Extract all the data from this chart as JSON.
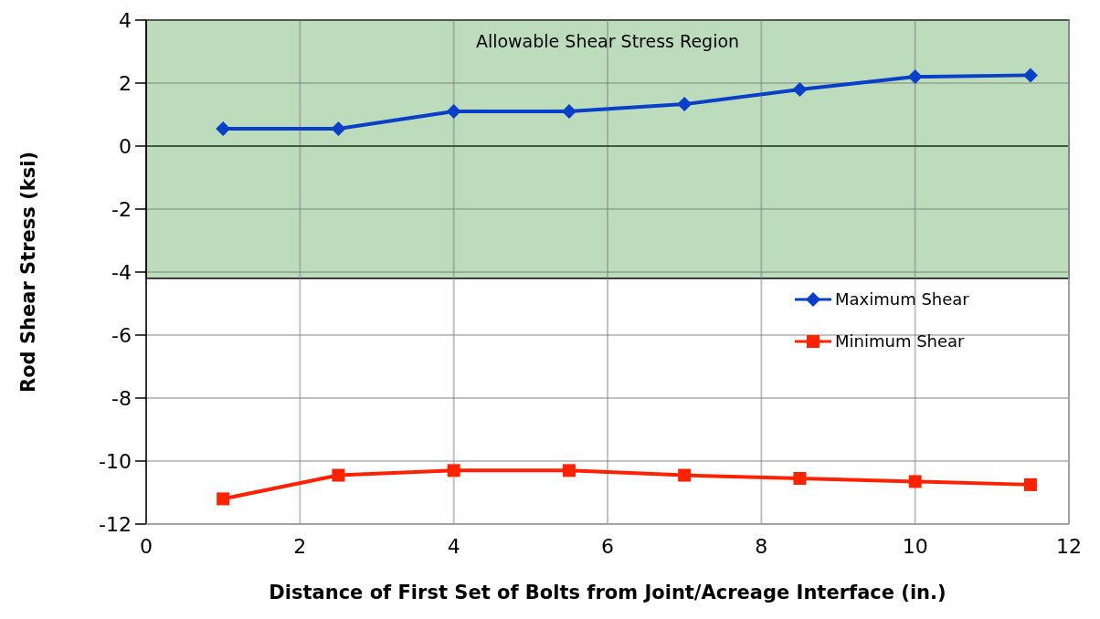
{
  "chart_data": {
    "type": "line",
    "xlabel": "Distance of First Set of Bolts from Joint/Acreage Interface (in.)",
    "ylabel": "Rod Shear Stress (ksi)",
    "x": [
      1,
      2.5,
      4,
      5.5,
      7,
      8.5,
      10,
      11.5
    ],
    "series": [
      {
        "name": "Maximum Shear",
        "color": "#0a3fc8",
        "marker": "diamond",
        "values": [
          0.55,
          0.55,
          1.1,
          1.1,
          1.33,
          1.8,
          2.2,
          2.25
        ]
      },
      {
        "name": "Minimum Shear",
        "color": "#ff2200",
        "marker": "square",
        "values": [
          -11.2,
          -10.45,
          -10.3,
          -10.3,
          -10.45,
          -10.55,
          -10.65,
          -10.75
        ]
      }
    ],
    "xlim": [
      0,
      12
    ],
    "xticks": [
      0,
      2,
      4,
      6,
      8,
      10,
      12
    ],
    "ylim": [
      -12,
      4
    ],
    "yticks": [
      -12,
      -10,
      -8,
      -6,
      -4,
      -2,
      0,
      2,
      4
    ],
    "grid": true,
    "legend": "right",
    "bands": [
      {
        "axis": "y",
        "from": -4.2,
        "to": 4,
        "label": "Allowable Shear Stress Region",
        "color": "#bcdcbc"
      }
    ],
    "ref_lines": [
      {
        "axis": "y",
        "value": 0,
        "color": "#1f3f1f"
      }
    ]
  }
}
